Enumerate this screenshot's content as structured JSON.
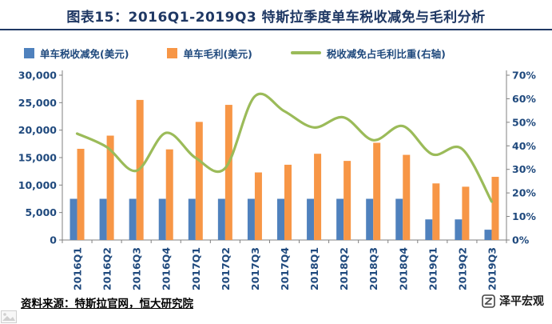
{
  "title": "图表15：2016Q1-2019Q3 特斯拉季度单车税收减免与毛利分析",
  "source": "资料来源：特斯拉官网，恒大研究院",
  "brand": "泽平宏观",
  "colors": {
    "title_text": "#1F3864",
    "axis_text": "#1F497D",
    "bar_tax_credit": "#4F81BD",
    "bar_gross_profit": "#F79646",
    "ratio_line": "#9BBB59",
    "axis_line": "#808080"
  },
  "icons": {
    "brand_logo": "zeping-macro-logo",
    "watermark": "image-placeholder"
  },
  "chart_data": {
    "type": "bar",
    "subtype": "grouped bars with smoothed line on secondary axis",
    "categories": [
      "2016Q1",
      "2016Q2",
      "2016Q3",
      "2016Q4",
      "2017Q1",
      "2017Q2",
      "2017Q3",
      "2017Q4",
      "2018Q1",
      "2018Q2",
      "2018Q3",
      "2018Q4",
      "2019Q1",
      "2019Q2",
      "2019Q3"
    ],
    "series": [
      {
        "name": "单车税收减免(美元)",
        "type": "bar",
        "axis": "left",
        "color": "#4F81BD",
        "values": [
          7500,
          7500,
          7500,
          7500,
          7500,
          7500,
          7500,
          7500,
          7500,
          7500,
          7500,
          7500,
          3750,
          3750,
          1875
        ]
      },
      {
        "name": "单车毛利(美元)",
        "type": "bar",
        "axis": "left",
        "color": "#F79646",
        "values": [
          16600,
          19000,
          25500,
          16500,
          21500,
          24600,
          12300,
          13700,
          15700,
          14400,
          17700,
          15500,
          10300,
          9700,
          11500
        ]
      },
      {
        "name": "税收减免占毛利比重(右轴)",
        "type": "line",
        "axis": "right",
        "color": "#9BBB59",
        "values": [
          45.2,
          39.5,
          29.4,
          45.5,
          34.9,
          30.5,
          61.0,
          54.7,
          47.8,
          52.1,
          42.4,
          48.4,
          36.4,
          38.7,
          16.3
        ]
      }
    ],
    "left_axis": {
      "min": 0,
      "max": 30000,
      "step": 5000,
      "tick_labels": [
        "0",
        "5,000",
        "10,000",
        "15,000",
        "20,000",
        "25,000",
        "30,000"
      ]
    },
    "right_axis": {
      "min": 0,
      "max": 70,
      "step": 10,
      "suffix": "%",
      "tick_labels": [
        "0%",
        "10%",
        "20%",
        "30%",
        "40%",
        "50%",
        "60%",
        "70%"
      ]
    },
    "grid": false,
    "legend_position": "top",
    "x_label_rotation": -90
  }
}
